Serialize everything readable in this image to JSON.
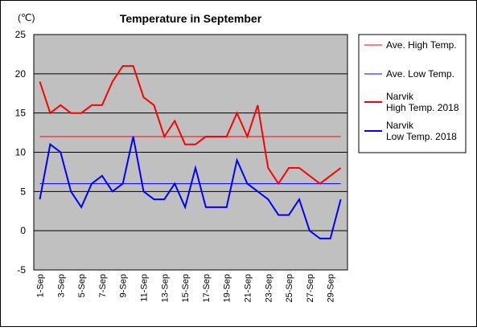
{
  "chart_data": {
    "type": "line",
    "title": "Temperature in September",
    "unit_label": "(℃)",
    "xlabel": "",
    "ylabel": "",
    "ylim": [
      -5,
      25
    ],
    "yticks": [
      -5,
      0,
      5,
      10,
      15,
      20,
      25
    ],
    "grid": "horizontal",
    "legend_position": "right",
    "plot_background": "#c0c0c0",
    "categories": [
      "1-Sep",
      "2-Sep",
      "3-Sep",
      "4-Sep",
      "5-Sep",
      "6-Sep",
      "7-Sep",
      "8-Sep",
      "9-Sep",
      "10-Sep",
      "11-Sep",
      "12-Sep",
      "13-Sep",
      "14-Sep",
      "15-Sep",
      "16-Sep",
      "17-Sep",
      "18-Sep",
      "19-Sep",
      "20-Sep",
      "21-Sep",
      "22-Sep",
      "23-Sep",
      "24-Sep",
      "25-Sep",
      "26-Sep",
      "27-Sep",
      "28-Sep",
      "29-Sep",
      "30-Sep"
    ],
    "tick_labels": [
      "1-Sep",
      "3-Sep",
      "5-Sep",
      "7-Sep",
      "9-Sep",
      "11-Sep",
      "13-Sep",
      "15-Sep",
      "17-Sep",
      "19-Sep",
      "21-Sep",
      "23-Sep",
      "25-Sep",
      "27-Sep",
      "29-Sep"
    ],
    "series": [
      {
        "name": "Ave. High Temp.",
        "label_lines": [
          "Ave. High Temp."
        ],
        "color": "#ff0000",
        "width": 1,
        "values": [
          12,
          12,
          12,
          12,
          12,
          12,
          12,
          12,
          12,
          12,
          12,
          12,
          12,
          12,
          12,
          12,
          12,
          12,
          12,
          12,
          12,
          12,
          12,
          12,
          12,
          12,
          12,
          12,
          12,
          12
        ]
      },
      {
        "name": "Ave. Low Temp.",
        "label_lines": [
          "Ave. Low Temp."
        ],
        "color": "#0000ff",
        "width": 1,
        "values": [
          6,
          6,
          6,
          6,
          6,
          6,
          6,
          6,
          6,
          6,
          6,
          6,
          6,
          6,
          6,
          6,
          6,
          6,
          6,
          6,
          6,
          6,
          6,
          6,
          6,
          6,
          6,
          6,
          6,
          6
        ]
      },
      {
        "name": "Narvik High Temp. 2018",
        "label_lines": [
          "Narvik",
          "High Temp. 2018"
        ],
        "color": "#ff0000",
        "width": 2,
        "values": [
          19,
          15,
          16,
          15,
          15,
          16,
          16,
          19,
          21,
          21,
          17,
          16,
          12,
          14,
          11,
          11,
          12,
          12,
          12,
          15,
          12,
          16,
          8,
          6,
          8,
          8,
          7,
          6,
          7,
          8
        ]
      },
      {
        "name": "Narvik Low Temp. 2018",
        "label_lines": [
          "Narvik",
          "Low Temp. 2018"
        ],
        "color": "#0000ff",
        "width": 2,
        "values": [
          4,
          11,
          10,
          5,
          3,
          6,
          7,
          5,
          6,
          12,
          5,
          4,
          4,
          6,
          3,
          8,
          3,
          3,
          3,
          9,
          6,
          5,
          4,
          2,
          2,
          4,
          0,
          -1,
          -1,
          4
        ]
      }
    ]
  }
}
